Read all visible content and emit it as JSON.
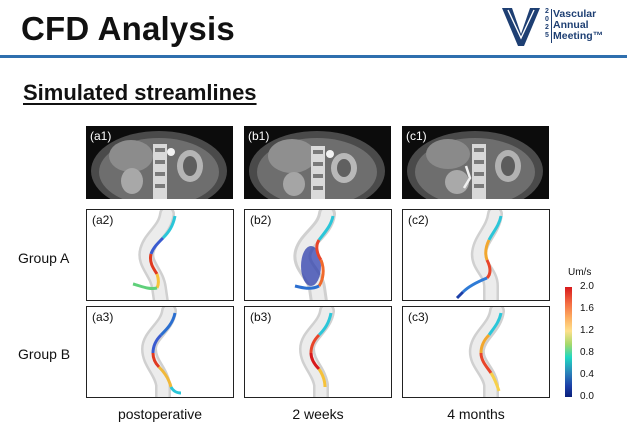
{
  "slide": {
    "title": "CFD Analysis",
    "subtitle": "Simulated streamlines"
  },
  "logo": {
    "year_chars": [
      "2",
      "0",
      "2",
      "5"
    ],
    "line1": "Vascular",
    "line2": "Annual",
    "line3": "Meeting™",
    "color": "#1e3f73"
  },
  "ct_scans": [
    {
      "label": "(a1)"
    },
    {
      "label": "(b1)"
    },
    {
      "label": "(c1)"
    }
  ],
  "groups": [
    {
      "label": "Group A",
      "panels": [
        "(a2)",
        "(b2)",
        "(c2)"
      ]
    },
    {
      "label": "Group B",
      "panels": [
        "(a3)",
        "(b3)",
        "(c3)"
      ]
    }
  ],
  "timepoints": [
    "postoperative",
    "2 weeks",
    "4 months"
  ],
  "colorbar": {
    "unit": "Um/s",
    "ticks": [
      "2.0",
      "1.6",
      "1.2",
      "0.8",
      "0.4",
      "0.0"
    ],
    "min": 0.0,
    "max": 2.0
  },
  "accent_color": "#2f6fae"
}
